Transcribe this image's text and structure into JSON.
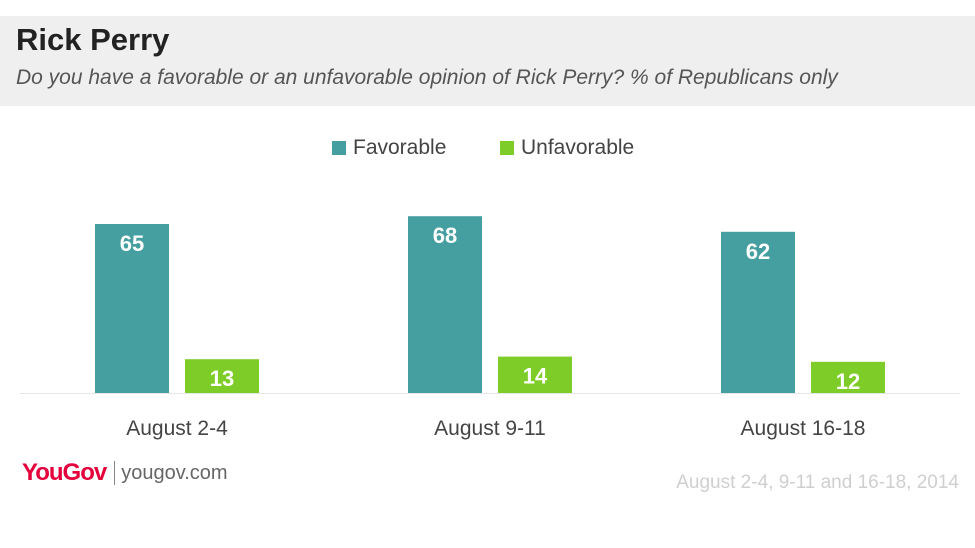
{
  "header": {
    "title": "Rick Perry",
    "subtitle": "Do you have a favorable or an unfavorable opinion of Rick Perry? % of Republicans only"
  },
  "colors": {
    "favorable": "#459e9f",
    "unfavorable": "#7dcc27",
    "brand": "#e4003b"
  },
  "chart_data": {
    "type": "bar",
    "categories": [
      "August 2-4",
      "August 9-11",
      "August 16-18"
    ],
    "series": [
      {
        "name": "Favorable",
        "values": [
          65,
          68,
          62
        ]
      },
      {
        "name": "Unfavorable",
        "values": [
          13,
          14,
          12
        ]
      }
    ],
    "ylim": [
      0,
      70
    ],
    "grid": false,
    "legend": "top-center"
  },
  "footer": {
    "logo_text": "YouGov",
    "url": "yougov.com",
    "note": "August 2-4, 9-11 and 16-18, 2014"
  }
}
